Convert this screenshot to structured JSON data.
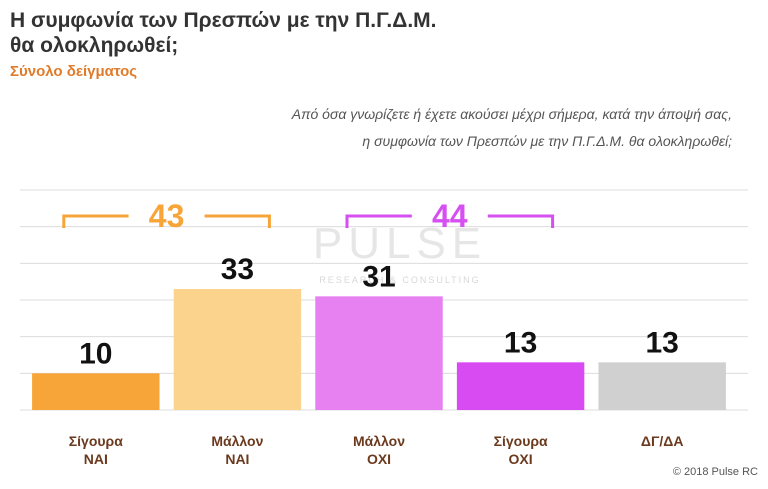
{
  "chart_data": {
    "type": "bar",
    "title": "Η συμφωνία των Πρεσπών με την Π.Γ.Δ.Μ.\nθα ολοκληρωθεί;",
    "subtitle": "Σύνολο δείγματος",
    "question": "Από όσα γνωρίζετε ή έχετε ακούσει μέχρι σήμερα, κατά την άποψή σας,\nη συμφωνία των Πρεσπών με την Π.Γ.Δ.Μ. θα ολοκληρωθεί;",
    "categories": [
      "Σίγουρα\nΝΑΙ",
      "Μάλλον\nΝΑΙ",
      "Μάλλον\nΟΧΙ",
      "Σίγουρα\nΟΧΙ",
      "ΔΓ/ΔΑ"
    ],
    "values": [
      10,
      33,
      31,
      13,
      13
    ],
    "colors": [
      "#f7a438",
      "#fbd38c",
      "#e781f2",
      "#d94bf2",
      "#d0d0d0"
    ],
    "groups": [
      {
        "value": 43,
        "color": "#f7a438"
      },
      {
        "value": 44,
        "color": "#d64ff0"
      }
    ],
    "ylim": [
      0,
      60
    ],
    "grid": true,
    "watermark": {
      "title": "PULSE",
      "subtitle": "RESEARCH & CONSULTING"
    },
    "source": "© 2018 Pulse RC"
  }
}
